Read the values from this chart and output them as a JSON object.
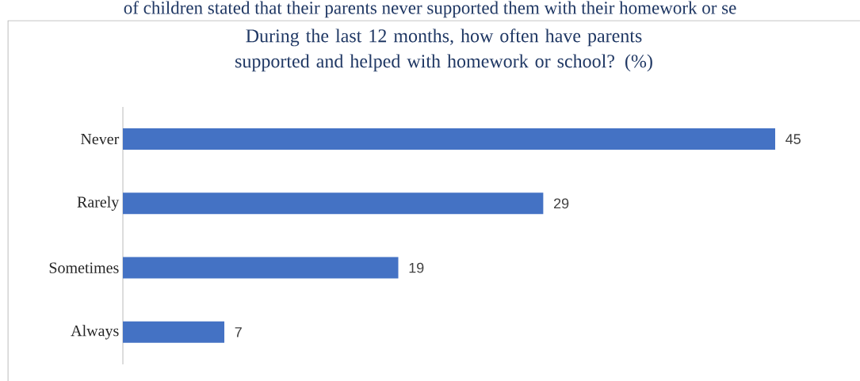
{
  "chart_data": {
    "type": "bar",
    "orientation": "horizontal",
    "title": "During the last 12 months, how often have parents supported and helped with homework or school? (%)",
    "categories": [
      "Never",
      "Rarely",
      "Sometimes",
      "Always"
    ],
    "values": [
      45,
      29,
      19,
      7
    ],
    "color": "#4472c4",
    "data_labels": true,
    "annotations": [
      "of children stated that their parents never supported them with their homework or se"
    ]
  }
}
